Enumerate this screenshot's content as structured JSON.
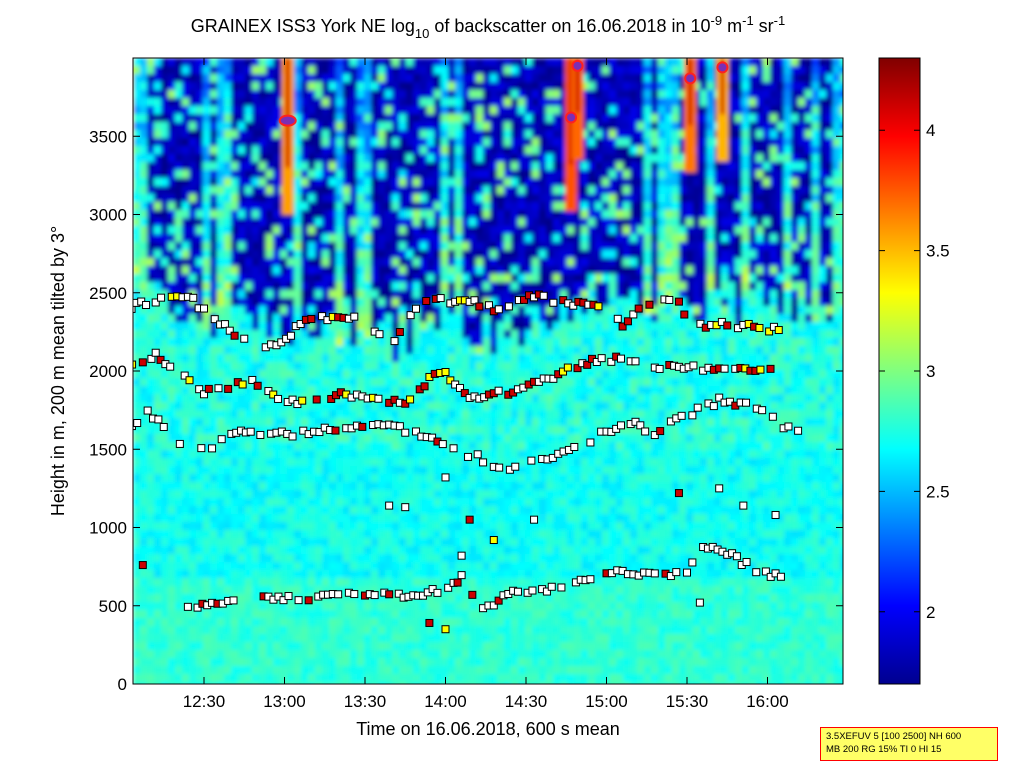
{
  "chart_data": {
    "type": "heatmap",
    "title": {
      "prefix": "GRAINEX ISS3 York NE log",
      "sub": "10",
      "middle": " of backscatter on 16.06.2018 in 10",
      "sup1": "-9",
      "unit1": " m",
      "sup2": "-1",
      "unit2": " sr",
      "sup3": "-1"
    },
    "xlabel": "Time on 16.06.2018, 600 s mean",
    "ylabel": "Height in m, 200 m mean tilted by 3°",
    "x_ticks": [
      "12:30",
      "13:00",
      "13:30",
      "14:00",
      "14:30",
      "15:00",
      "15:30",
      "16:00"
    ],
    "x_tick_hours": [
      12.5,
      13.0,
      13.5,
      14.0,
      14.5,
      15.0,
      15.5,
      16.0
    ],
    "x_range_hours": [
      12.02,
      17.0
    ],
    "y_ticks": [
      0,
      500,
      1000,
      1500,
      2000,
      2500,
      3000,
      3500
    ],
    "y_range": [
      0,
      4000
    ],
    "colorbar": {
      "range": [
        1.7,
        4.3
      ],
      "ticks": [
        2,
        2.5,
        3,
        3.5,
        4
      ],
      "tick_labels": [
        "2",
        "2.5",
        "3",
        "3.5",
        "4"
      ],
      "colormap": "jet"
    },
    "layers": [
      {
        "name": "aerosol layer (low)",
        "points": [
          [
            12.4,
            510
          ],
          [
            12.55,
            500
          ],
          [
            12.75,
            545
          ],
          [
            12.9,
            540
          ],
          [
            13.15,
            550
          ],
          [
            13.3,
            570
          ],
          [
            13.5,
            575
          ],
          [
            13.65,
            570
          ],
          [
            13.8,
            560
          ],
          [
            13.95,
            600
          ],
          [
            14.05,
            640
          ],
          [
            14.1,
            690
          ],
          [
            14.2,
            480
          ],
          [
            14.3,
            520
          ],
          [
            14.45,
            600
          ],
          [
            14.6,
            590
          ],
          [
            14.75,
            640
          ],
          [
            14.9,
            680
          ],
          [
            15.1,
            720
          ],
          [
            15.3,
            690
          ],
          [
            15.5,
            700
          ],
          [
            15.6,
            890
          ],
          [
            15.75,
            840
          ],
          [
            15.9,
            740
          ],
          [
            16.05,
            690
          ],
          [
            16.15,
            660
          ]
        ]
      },
      {
        "name": "mixing layer",
        "points": [
          [
            12.02,
            2030
          ],
          [
            12.12,
            2070
          ],
          [
            12.2,
            2100
          ],
          [
            12.32,
            2000
          ],
          [
            12.5,
            1870
          ],
          [
            12.65,
            1900
          ],
          [
            12.8,
            1930
          ],
          [
            12.9,
            1860
          ],
          [
            13.05,
            1810
          ],
          [
            13.2,
            1800
          ],
          [
            13.35,
            1850
          ],
          [
            13.55,
            1830
          ],
          [
            13.75,
            1800
          ],
          [
            13.9,
            1950
          ],
          [
            14.0,
            1990
          ],
          [
            14.15,
            1830
          ],
          [
            14.3,
            1850
          ],
          [
            14.45,
            1880
          ],
          [
            14.55,
            1920
          ],
          [
            14.7,
            1980
          ],
          [
            14.85,
            2050
          ],
          [
            15.0,
            2080
          ],
          [
            15.15,
            2070
          ],
          [
            15.3,
            2030
          ],
          [
            15.45,
            2030
          ],
          [
            15.6,
            2020
          ],
          [
            15.8,
            2030
          ],
          [
            16.05,
            2000
          ]
        ]
      },
      {
        "name": "residual layer top",
        "points": [
          [
            12.02,
            2410
          ],
          [
            12.2,
            2450
          ],
          [
            12.4,
            2480
          ],
          [
            12.6,
            2300
          ],
          [
            12.75,
            2200
          ],
          [
            12.95,
            2150
          ],
          [
            13.1,
            2300
          ],
          [
            13.3,
            2350
          ],
          [
            13.5,
            2320
          ],
          [
            13.65,
            2150
          ],
          [
            13.85,
            2470
          ],
          [
            14.0,
            2450
          ],
          [
            14.15,
            2440
          ],
          [
            14.3,
            2400
          ],
          [
            14.55,
            2480
          ],
          [
            14.7,
            2450
          ],
          [
            14.95,
            2400
          ],
          [
            15.1,
            2300
          ],
          [
            15.3,
            2470
          ],
          [
            15.45,
            2430
          ],
          [
            15.55,
            2280
          ],
          [
            15.75,
            2300
          ],
          [
            15.95,
            2280
          ],
          [
            16.1,
            2260
          ]
        ]
      },
      {
        "name": "secondary layer",
        "points": [
          [
            12.02,
            1620
          ],
          [
            12.15,
            1750
          ],
          [
            12.35,
            1530
          ],
          [
            12.55,
            1520
          ],
          [
            12.7,
            1620
          ],
          [
            12.85,
            1580
          ],
          [
            13.05,
            1600
          ],
          [
            13.25,
            1630
          ],
          [
            13.45,
            1650
          ],
          [
            13.65,
            1650
          ],
          [
            13.85,
            1600
          ],
          [
            14.05,
            1500
          ],
          [
            14.2,
            1450
          ],
          [
            14.4,
            1360
          ],
          [
            14.6,
            1440
          ],
          [
            14.8,
            1500
          ],
          [
            15.0,
            1620
          ],
          [
            15.15,
            1670
          ],
          [
            15.3,
            1600
          ],
          [
            15.5,
            1720
          ],
          [
            15.7,
            1810
          ],
          [
            15.9,
            1780
          ],
          [
            16.1,
            1650
          ],
          [
            16.25,
            1620
          ]
        ]
      },
      {
        "name": "scattered detections",
        "points": [
          [
            13.65,
            1140
          ],
          [
            13.75,
            1130
          ],
          [
            14.0,
            1320
          ],
          [
            14.15,
            1050
          ],
          [
            14.3,
            920
          ],
          [
            14.55,
            1050
          ],
          [
            15.45,
            1220
          ],
          [
            15.7,
            1250
          ],
          [
            15.85,
            1140
          ],
          [
            16.05,
            1080
          ],
          [
            13.9,
            390
          ],
          [
            14.0,
            350
          ],
          [
            14.1,
            820
          ],
          [
            12.12,
            760
          ],
          [
            15.58,
            520
          ]
        ]
      }
    ],
    "cloud_markers": [
      [
        12.02,
        3760
      ],
      [
        13.02,
        3600
      ],
      [
        14.78,
        3620
      ],
      [
        14.82,
        3950
      ],
      [
        15.52,
        3870
      ],
      [
        15.72,
        3940
      ]
    ]
  },
  "infobox": {
    "line1": "3.5XEFUV 5 [100 2500] NH 600",
    "line2": "MB 200 RG 15% TI 0 HI 15"
  }
}
